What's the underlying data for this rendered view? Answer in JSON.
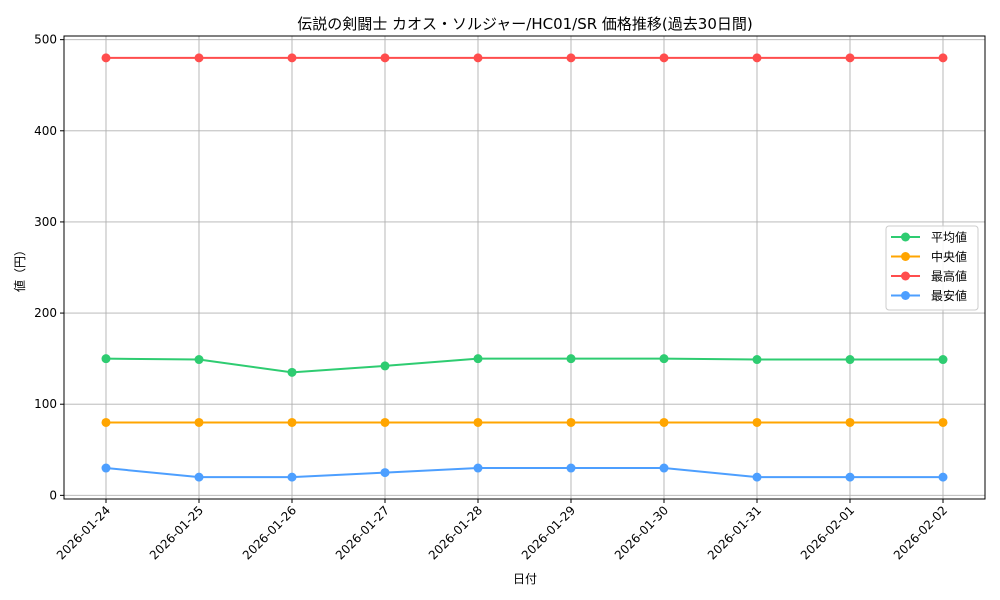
{
  "chart_data": {
    "type": "line",
    "title": "伝説の剣闘士 カオス・ソルジャー/HC01/SR 価格推移(過去30日間)",
    "xlabel": "日付",
    "ylabel": "値（円）",
    "categories": [
      "2026-01-24",
      "2026-01-25",
      "2026-01-26",
      "2026-01-27",
      "2026-01-28",
      "2026-01-29",
      "2026-01-30",
      "2026-01-31",
      "2026-02-01",
      "2026-02-02"
    ],
    "ylim": [
      -4,
      504
    ],
    "yticks": [
      0,
      100,
      200,
      300,
      400,
      500
    ],
    "grid": true,
    "legend_position": "center-right",
    "series": [
      {
        "name": "平均値",
        "color": "#2ecc71",
        "values": [
          150,
          149,
          135,
          142,
          150,
          150,
          150,
          149,
          149,
          149
        ]
      },
      {
        "name": "中央値",
        "color": "#ffa500",
        "values": [
          80,
          80,
          80,
          80,
          80,
          80,
          80,
          80,
          80,
          80
        ]
      },
      {
        "name": "最高値",
        "color": "#ff4d4d",
        "values": [
          480,
          480,
          480,
          480,
          480,
          480,
          480,
          480,
          480,
          480
        ]
      },
      {
        "name": "最安値",
        "color": "#4d9fff",
        "values": [
          30,
          20,
          20,
          25,
          30,
          30,
          30,
          20,
          20,
          20
        ]
      }
    ]
  }
}
